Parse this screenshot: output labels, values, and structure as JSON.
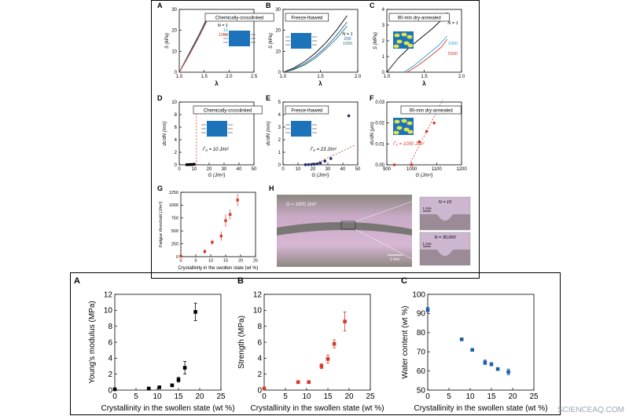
{
  "colors": {
    "black": "#000000",
    "red": "#d43a2a",
    "blue": "#1f5fa6",
    "navy": "#1e2a6e",
    "cyan": "#2aa6d9",
    "teal": "#2a7c6f",
    "gray": "#8a8a8a",
    "gel_blue": "#1c73b9",
    "gel_yellow": "#e1e44b",
    "photo_pink": "#c8a9c6"
  },
  "top": {
    "panels": [
      {
        "letter": "A",
        "box_label": "Chemically-crosslinked",
        "ylabel": "S (kPa)",
        "xlabel": "λ",
        "xticks": [
          "1.0",
          "1.5",
          "2.0",
          "2.5"
        ],
        "yticks": [
          "0",
          "10",
          "20",
          "30"
        ],
        "legend": [
          "N = 1",
          "10",
          "1000"
        ]
      },
      {
        "letter": "B",
        "box_label": "Freeze-thawed",
        "ylabel": "S (kPa)",
        "xlabel": "λ",
        "xticks": [
          "1.0",
          "1.5",
          "2.0"
        ],
        "yticks": [
          "0",
          "10",
          "20",
          "30"
        ],
        "legend": [
          "N = 1",
          "200",
          "1000"
        ]
      },
      {
        "letter": "C",
        "box_label": "90-min dry-annealed",
        "ylabel": "S (MPa)",
        "xlabel": "λ",
        "xticks": [
          "1.0",
          "1.5",
          "2.0"
        ],
        "yticks": [
          "0",
          "1",
          "2",
          "3",
          "4"
        ],
        "legend": [
          "N = 1",
          "1000",
          "5000"
        ]
      },
      {
        "letter": "D",
        "box_label": "Chemically-crosslinked",
        "ylabel": "dc/dN (mm)",
        "xlabel": "G (J/m²)",
        "xticks": [
          "0",
          "10",
          "20",
          "30",
          "40",
          "50"
        ],
        "yticks": [
          "0",
          "2",
          "4",
          "6",
          "8",
          "10"
        ],
        "annotation": "Γ₀ = 10 J/m²"
      },
      {
        "letter": "E",
        "box_label": "Freeze-thawed",
        "ylabel": "dc/dN (mm)",
        "xlabel": "G (J/m²)",
        "xticks": [
          "0",
          "10",
          "20",
          "30",
          "40",
          "50"
        ],
        "yticks": [
          "0",
          "1",
          "2",
          "3",
          "4",
          "5"
        ],
        "annotation": "Γ₀ = 23 J/m²"
      },
      {
        "letter": "F",
        "box_label": "90-min dry-annealed",
        "ylabel": "dc/dN (μm)",
        "xlabel": "G (J/m²)",
        "xticks": [
          "900",
          "1000",
          "1100",
          "1200"
        ],
        "yticks": [
          "0.00",
          "0.01",
          "0.02",
          "0.03"
        ],
        "annotation": "Γ₀ = 1000 J/m²"
      },
      {
        "letter": "G",
        "ylabel": "Fatigue threshold (J/m²)",
        "xlabel": "Crystallinity in the swollen state (wt %)",
        "xticks": [
          "0",
          "5",
          "10",
          "15",
          "20",
          "25"
        ],
        "yticks": [
          "0",
          "250",
          "500",
          "750",
          "1000",
          "1250"
        ]
      },
      {
        "letter": "H",
        "photo_label": "G = 1000 J/m²",
        "scale": "1 mm",
        "inset1": "N = 10",
        "inset2": "N = 30,000",
        "inset_scale1": "1 mm",
        "inset_scale2": "1 mm"
      }
    ]
  },
  "chart_data": [
    {
      "type": "line",
      "title": "Chemically-crosslinked",
      "letter": "A",
      "xlabel": "λ",
      "ylabel": "S (kPa)",
      "xlim": [
        1.0,
        2.5
      ],
      "ylim": [
        0,
        30
      ],
      "series": [
        {
          "name": "N = 1",
          "x": [
            1.0,
            1.1,
            1.2,
            1.3,
            1.4,
            1.5,
            1.6
          ],
          "y": [
            0,
            4.5,
            9,
            13.5,
            18,
            23,
            28
          ]
        },
        {
          "name": "10",
          "x": [
            1.0,
            1.1,
            1.2,
            1.3,
            1.4,
            1.5,
            1.6
          ],
          "y": [
            0,
            4.3,
            8.6,
            13,
            17.5,
            22.4,
            27.3
          ]
        },
        {
          "name": "1000",
          "x": [
            1.0,
            1.1,
            1.2,
            1.3,
            1.4,
            1.5,
            1.6
          ],
          "y": [
            0,
            4,
            8.2,
            12.5,
            17,
            21.8,
            26.6
          ]
        }
      ]
    },
    {
      "type": "line",
      "title": "Freeze-thawed",
      "letter": "B",
      "xlabel": "λ",
      "ylabel": "S (kPa)",
      "xlim": [
        1.0,
        2.4
      ],
      "ylim": [
        0,
        30
      ],
      "series": [
        {
          "name": "N = 1",
          "x": [
            1.0,
            1.2,
            1.4,
            1.6,
            1.8,
            2.0,
            2.2
          ],
          "y": [
            0,
            2,
            5,
            9,
            14,
            20,
            27
          ]
        },
        {
          "name": "200",
          "x": [
            1.0,
            1.2,
            1.4,
            1.6,
            1.8,
            2.0,
            2.2
          ],
          "y": [
            0,
            1.5,
            4,
            7.5,
            12,
            17.5,
            24
          ]
        },
        {
          "name": "1000",
          "x": [
            1.0,
            1.2,
            1.4,
            1.6,
            1.8,
            2.0,
            2.2
          ],
          "y": [
            0,
            1.2,
            3.4,
            6.6,
            11,
            16,
            22
          ]
        }
      ]
    },
    {
      "type": "line",
      "title": "90-min dry-annealed",
      "letter": "C",
      "xlabel": "λ",
      "ylabel": "S (MPa)",
      "xlim": [
        1.0,
        2.3
      ],
      "ylim": [
        0,
        4
      ],
      "series": [
        {
          "name": "N = 1",
          "x": [
            1.0,
            1.2,
            1.4,
            1.6,
            1.8,
            2.0,
            2.05
          ],
          "y": [
            0,
            0.9,
            1.6,
            2.2,
            2.8,
            3.5,
            3.8
          ]
        },
        {
          "name": "1000",
          "x": [
            1.3,
            1.5,
            1.7,
            1.9,
            2.05
          ],
          "y": [
            0,
            0.5,
            1.1,
            1.7,
            2.3
          ]
        },
        {
          "name": "5000",
          "x": [
            1.35,
            1.55,
            1.75,
            1.95,
            2.05
          ],
          "y": [
            0,
            0.45,
            1.0,
            1.6,
            2.1
          ]
        }
      ]
    },
    {
      "type": "scatter",
      "title": "Chemically-crosslinked",
      "letter": "D",
      "xlabel": "G (J/m²)",
      "ylabel": "dc/dN (mm)",
      "xlim": [
        0,
        50
      ],
      "ylim": [
        0,
        10
      ],
      "threshold": 10,
      "series": [
        {
          "name": "",
          "x": [
            5,
            6,
            7,
            8,
            9,
            10,
            11.5
          ],
          "y": [
            0.02,
            0.03,
            0.04,
            0.05,
            0.06,
            0.08,
            9.2
          ]
        }
      ]
    },
    {
      "type": "scatter",
      "title": "Freeze-thawed",
      "letter": "E",
      "xlabel": "G (J/m²)",
      "ylabel": "dc/dN (mm)",
      "xlim": [
        0,
        50
      ],
      "ylim": [
        0,
        5
      ],
      "threshold": 23,
      "series": [
        {
          "name": "",
          "x": [
            15,
            17,
            19,
            21,
            23,
            25,
            28,
            32,
            44
          ],
          "y": [
            0.01,
            0.02,
            0.03,
            0.05,
            0.08,
            0.15,
            0.3,
            0.5,
            3.9
          ]
        }
      ]
    },
    {
      "type": "scatter",
      "title": "90-min dry-annealed",
      "letter": "F",
      "xlabel": "G (J/m²)",
      "ylabel": "dc/dN (μm)",
      "xlim": [
        900,
        1200
      ],
      "ylim": [
        0,
        0.03
      ],
      "threshold": 1000,
      "series": [
        {
          "name": "",
          "x": [
            930,
            1000,
            1030,
            1060,
            1090,
            1110
          ],
          "y": [
            0.0,
            0.0,
            0.011,
            0.016,
            0.02,
            0.027
          ]
        }
      ]
    },
    {
      "type": "scatter",
      "letter": "G",
      "xlabel": "Crystallinity in the swollen state (wt %)",
      "ylabel": "Fatigue threshold (J/m²)",
      "xlim": [
        0,
        25
      ],
      "ylim": [
        0,
        1250
      ],
      "series": [
        {
          "name": "",
          "x": [
            0,
            8,
            10.5,
            13.5,
            15,
            16.5,
            19
          ],
          "y": [
            10,
            100,
            280,
            400,
            700,
            820,
            1100
          ],
          "err": [
            0,
            40,
            50,
            90,
            120,
            100,
            120
          ]
        }
      ]
    },
    {
      "type": "scatter",
      "letter": "A",
      "xlabel": "Crystallinity in the swollen state (wt %)",
      "ylabel": "Young's modulus (MPa)",
      "xlim": [
        0,
        25
      ],
      "ylim": [
        0,
        12
      ],
      "xticks": [
        "0",
        "5",
        "10",
        "15",
        "20",
        "25"
      ],
      "yticks": [
        "0",
        "2",
        "4",
        "6",
        "8",
        "10",
        "12"
      ],
      "series": [
        {
          "name": "",
          "x": [
            0,
            8,
            10.5,
            13.5,
            15,
            16.5,
            19
          ],
          "y": [
            0.1,
            0.2,
            0.35,
            0.6,
            1.3,
            2.8,
            9.8
          ],
          "err": [
            0.05,
            0.05,
            0.1,
            0.1,
            0.3,
            0.8,
            1.1
          ]
        }
      ]
    },
    {
      "type": "scatter",
      "letter": "B",
      "xlabel": "Crystallinity in the swollen state (wt %)",
      "ylabel": "Strength (MPa)",
      "xlim": [
        0,
        25
      ],
      "ylim": [
        0,
        12
      ],
      "xticks": [
        "0",
        "5",
        "10",
        "15",
        "20",
        "25"
      ],
      "yticks": [
        "0",
        "2",
        "4",
        "6",
        "8",
        "10",
        "12"
      ],
      "series": [
        {
          "name": "",
          "x": [
            0,
            8,
            10.5,
            13.5,
            15,
            16.5,
            19
          ],
          "y": [
            0.2,
            1.0,
            1.0,
            3.0,
            3.9,
            5.8,
            8.6
          ],
          "err": [
            0.05,
            0.1,
            0.1,
            0.3,
            0.5,
            0.5,
            1.2
          ]
        }
      ]
    },
    {
      "type": "scatter",
      "letter": "C",
      "xlabel": "Crystallinity in the swollen state (wt %)",
      "ylabel": "Water content (wt %)",
      "xlim": [
        0,
        25
      ],
      "ylim": [
        50,
        100
      ],
      "xticks": [
        "0",
        "5",
        "10",
        "15",
        "20",
        "25"
      ],
      "yticks": [
        "50",
        "60",
        "70",
        "80",
        "90",
        "100"
      ],
      "series": [
        {
          "name": "",
          "x": [
            0,
            8,
            10.5,
            13.5,
            15,
            16.5,
            19
          ],
          "y": [
            92,
            76.5,
            71,
            64.5,
            63.5,
            61,
            59.5
          ],
          "err": [
            1.2,
            0.5,
            0.5,
            1.2,
            0.8,
            0.6,
            1.5
          ]
        }
      ]
    }
  ],
  "watermark": "SCIENCEAQ.COM"
}
